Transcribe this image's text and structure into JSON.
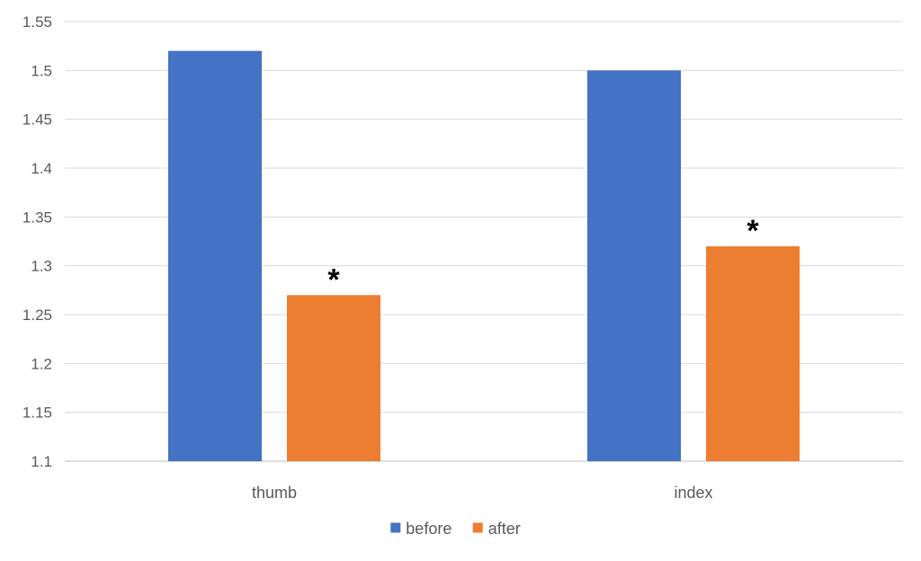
{
  "chart_data": {
    "type": "bar",
    "title": "",
    "xlabel": "",
    "ylabel": "",
    "categories": [
      "thumb",
      "index"
    ],
    "series": [
      {
        "name": "before",
        "values": [
          1.52,
          1.5
        ],
        "color": "#4472C4"
      },
      {
        "name": "after",
        "values": [
          1.27,
          1.32
        ],
        "color": "#ED7D31"
      }
    ],
    "ylim": [
      1.1,
      1.55
    ],
    "yticks": [
      "1.1",
      "1.15",
      "1.2",
      "1.25",
      "1.3",
      "1.35",
      "1.4",
      "1.45",
      "1.5",
      "1.55"
    ],
    "annotations": [
      {
        "text": "*",
        "category": "thumb",
        "series": "after"
      },
      {
        "text": "*",
        "category": "index",
        "series": "after"
      }
    ],
    "grid": true,
    "legend_position": "bottom"
  }
}
